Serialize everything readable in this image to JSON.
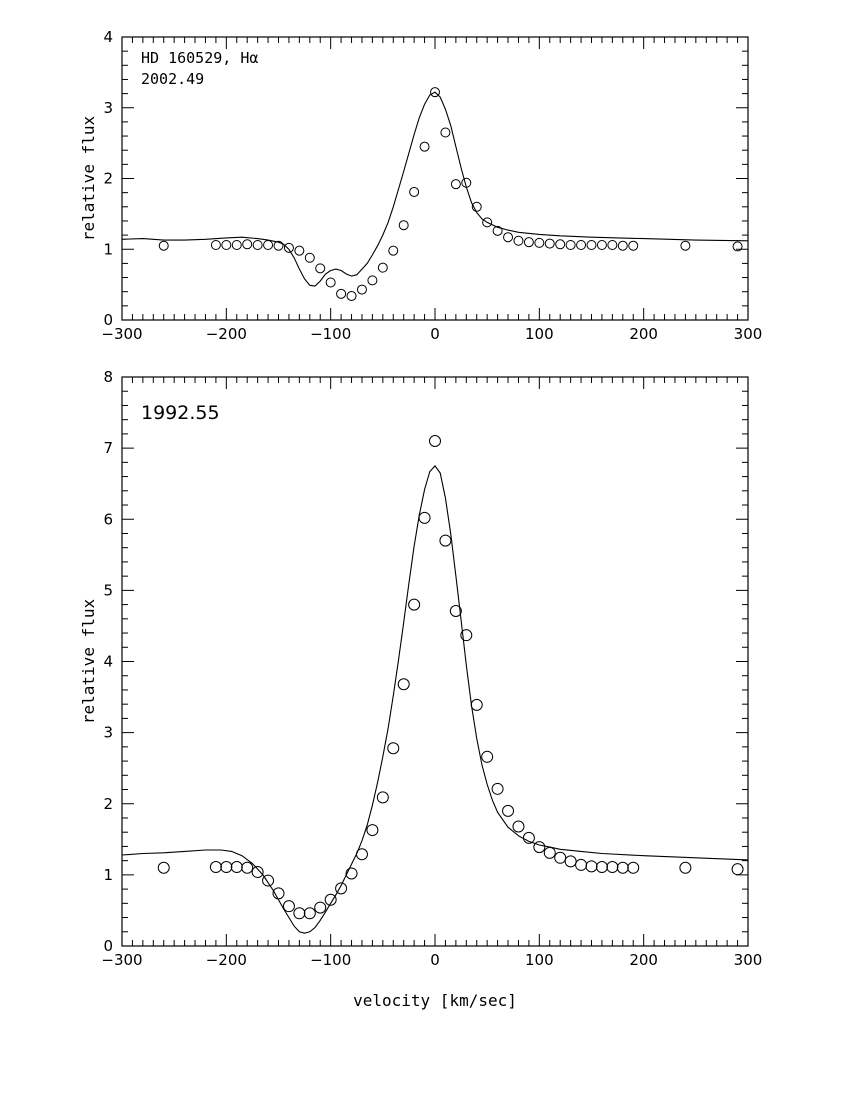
{
  "chart_data": [
    {
      "type": "scatter",
      "panel": "top",
      "annotation_lines": [
        "HD 160529, Hα",
        "2002.49"
      ],
      "xlabel": "",
      "ylabel": "relative flux",
      "xlim": [
        -300,
        300
      ],
      "ylim": [
        0,
        4
      ],
      "x_ticks": [
        -300,
        -200,
        -100,
        0,
        100,
        200,
        300
      ],
      "x_tick_labels": [
        "−300",
        "−200",
        "−100",
        "0",
        "100",
        "200",
        "300"
      ],
      "y_ticks": [
        0,
        1,
        2,
        3,
        4
      ],
      "y_tick_labels": [
        "0",
        "1",
        "2",
        "3",
        "4"
      ],
      "grid": false,
      "series": [
        {
          "kind": "line",
          "x": [
            -300,
            -280,
            -260,
            -240,
            -220,
            -200,
            -185,
            -170,
            -160,
            -150,
            -145,
            -140,
            -135,
            -130,
            -125,
            -120,
            -115,
            -110,
            -105,
            -100,
            -95,
            -90,
            -85,
            -80,
            -75,
            -70,
            -65,
            -60,
            -55,
            -50,
            -45,
            -40,
            -35,
            -30,
            -25,
            -20,
            -15,
            -10,
            -5,
            0,
            5,
            10,
            15,
            20,
            25,
            30,
            35,
            40,
            45,
            50,
            60,
            70,
            80,
            100,
            120,
            150,
            200,
            250,
            300
          ],
          "y": [
            1.14,
            1.15,
            1.13,
            1.13,
            1.14,
            1.16,
            1.17,
            1.15,
            1.13,
            1.1,
            1.07,
            1.0,
            0.88,
            0.72,
            0.58,
            0.49,
            0.48,
            0.55,
            0.65,
            0.7,
            0.72,
            0.7,
            0.65,
            0.62,
            0.64,
            0.72,
            0.8,
            0.92,
            1.05,
            1.2,
            1.38,
            1.6,
            1.85,
            2.1,
            2.36,
            2.62,
            2.86,
            3.05,
            3.18,
            3.22,
            3.15,
            2.98,
            2.75,
            2.45,
            2.15,
            1.88,
            1.66,
            1.52,
            1.43,
            1.38,
            1.31,
            1.27,
            1.24,
            1.21,
            1.19,
            1.17,
            1.15,
            1.13,
            1.12
          ]
        },
        {
          "kind": "points",
          "x": [
            -260,
            -210,
            -200,
            -190,
            -180,
            -170,
            -160,
            -150,
            -140,
            -130,
            -120,
            -110,
            -100,
            -90,
            -80,
            -70,
            -60,
            -50,
            -40,
            -30,
            -20,
            -10,
            0,
            10,
            20,
            30,
            40,
            50,
            60,
            70,
            80,
            90,
            100,
            110,
            120,
            130,
            140,
            150,
            160,
            170,
            180,
            190,
            240,
            290
          ],
          "y": [
            1.05,
            1.06,
            1.06,
            1.06,
            1.07,
            1.06,
            1.06,
            1.05,
            1.02,
            0.98,
            0.88,
            0.73,
            0.53,
            0.37,
            0.34,
            0.43,
            0.56,
            0.74,
            0.98,
            1.34,
            1.81,
            2.45,
            3.22,
            2.65,
            1.92,
            1.94,
            1.6,
            1.38,
            1.26,
            1.17,
            1.12,
            1.1,
            1.09,
            1.08,
            1.07,
            1.06,
            1.06,
            1.06,
            1.06,
            1.06,
            1.05,
            1.05,
            1.05,
            1.04
          ]
        }
      ]
    },
    {
      "type": "scatter",
      "panel": "bottom",
      "annotation_lines": [
        "1992.55"
      ],
      "xlabel": "velocity [km/sec]",
      "ylabel": "relative flux",
      "xlim": [
        -300,
        300
      ],
      "ylim": [
        0,
        8
      ],
      "x_ticks": [
        -300,
        -200,
        -100,
        0,
        100,
        200,
        300
      ],
      "x_tick_labels": [
        "−300",
        "−200",
        "−100",
        "0",
        "100",
        "200",
        "300"
      ],
      "y_ticks": [
        0,
        1,
        2,
        3,
        4,
        5,
        6,
        7,
        8
      ],
      "y_tick_labels": [
        "0",
        "1",
        "2",
        "3",
        "4",
        "5",
        "6",
        "7",
        "8"
      ],
      "grid": false,
      "series": [
        {
          "kind": "line",
          "x": [
            -300,
            -280,
            -260,
            -240,
            -220,
            -205,
            -195,
            -185,
            -175,
            -165,
            -155,
            -145,
            -140,
            -135,
            -130,
            -125,
            -120,
            -115,
            -110,
            -105,
            -100,
            -95,
            -90,
            -85,
            -80,
            -75,
            -70,
            -65,
            -60,
            -55,
            -50,
            -45,
            -40,
            -35,
            -30,
            -25,
            -20,
            -15,
            -10,
            -5,
            0,
            5,
            10,
            15,
            20,
            25,
            30,
            35,
            40,
            45,
            50,
            55,
            60,
            70,
            80,
            90,
            100,
            110,
            120,
            140,
            160,
            200,
            250,
            300
          ],
          "y": [
            1.28,
            1.3,
            1.31,
            1.33,
            1.35,
            1.35,
            1.33,
            1.27,
            1.16,
            1.0,
            0.78,
            0.52,
            0.4,
            0.28,
            0.2,
            0.18,
            0.2,
            0.26,
            0.36,
            0.48,
            0.6,
            0.72,
            0.85,
            1.0,
            1.15,
            1.3,
            1.48,
            1.7,
            1.98,
            2.3,
            2.66,
            3.06,
            3.52,
            4.02,
            4.55,
            5.1,
            5.62,
            6.06,
            6.42,
            6.67,
            6.75,
            6.65,
            6.3,
            5.8,
            5.2,
            4.58,
            3.95,
            3.38,
            2.92,
            2.55,
            2.27,
            2.05,
            1.88,
            1.67,
            1.55,
            1.47,
            1.42,
            1.39,
            1.36,
            1.33,
            1.3,
            1.27,
            1.24,
            1.21
          ]
        },
        {
          "kind": "points",
          "x": [
            -260,
            -210,
            -200,
            -190,
            -180,
            -170,
            -160,
            -150,
            -140,
            -130,
            -120,
            -110,
            -100,
            -90,
            -80,
            -70,
            -60,
            -50,
            -40,
            -30,
            -20,
            -10,
            0,
            10,
            20,
            30,
            40,
            50,
            60,
            70,
            80,
            90,
            100,
            110,
            120,
            130,
            140,
            150,
            160,
            170,
            180,
            190,
            240,
            290
          ],
          "y": [
            1.1,
            1.11,
            1.11,
            1.11,
            1.1,
            1.04,
            0.92,
            0.74,
            0.56,
            0.46,
            0.46,
            0.54,
            0.65,
            0.81,
            1.02,
            1.29,
            1.63,
            2.09,
            2.78,
            3.68,
            4.8,
            6.02,
            7.1,
            5.7,
            4.71,
            4.37,
            3.39,
            2.66,
            2.21,
            1.9,
            1.68,
            1.52,
            1.39,
            1.31,
            1.24,
            1.19,
            1.14,
            1.12,
            1.11,
            1.11,
            1.1,
            1.1,
            1.1,
            1.08
          ]
        }
      ]
    }
  ]
}
